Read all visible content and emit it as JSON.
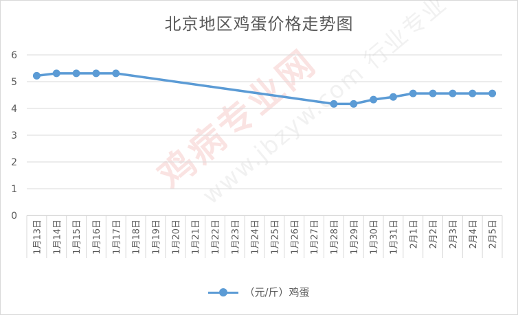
{
  "chart_data": {
    "type": "line",
    "title": "北京地区鸡蛋价格走势图",
    "categories": [
      "1月13日",
      "1月14日",
      "1月15日",
      "1月16日",
      "1月17日",
      "1月18日",
      "1月19日",
      "1月20日",
      "1月21日",
      "1月22日",
      "1月23日",
      "1月24日",
      "1月25日",
      "1月26日",
      "1月27日",
      "1月28日",
      "1月29日",
      "1月30日",
      "1月31日",
      "2月1日",
      "2月2日",
      "2月3日",
      "2月4日",
      "2月5日"
    ],
    "series": [
      {
        "name": "（元/斤）鸡蛋",
        "values": [
          5.22,
          5.31,
          5.31,
          5.31,
          5.31,
          null,
          null,
          null,
          null,
          null,
          null,
          null,
          null,
          null,
          null,
          4.17,
          4.17,
          4.33,
          4.43,
          4.56,
          4.56,
          4.56,
          4.56,
          4.56
        ],
        "color": "#5b9bd5"
      }
    ],
    "yticks": [
      "0",
      "1",
      "2",
      "3",
      "4",
      "5",
      "6"
    ],
    "ylim": [
      0,
      6
    ],
    "xlabel": "",
    "ylabel": "",
    "grid": true,
    "legend": "bottom"
  },
  "watermark": {
    "line1": "鸡病专业网",
    "line2": "www.jbzyw.com 行业专业"
  },
  "colors": {
    "series": "#5b9bd5",
    "grid": "#d9d9d9",
    "text": "#595959"
  }
}
